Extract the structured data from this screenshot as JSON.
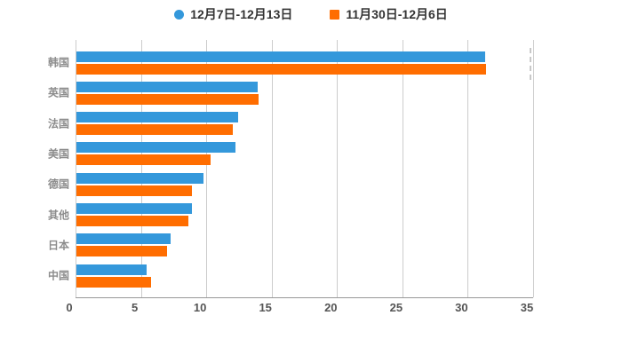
{
  "legend": {
    "items": [
      {
        "label": "12月7日-12月13日",
        "color": "#3498db",
        "marker": "circle"
      },
      {
        "label": "11月30日-12月6日",
        "color": "#ff6d00",
        "marker": "square"
      }
    ]
  },
  "chart_data": {
    "type": "bar",
    "orientation": "horizontal",
    "title": "",
    "xlabel": "",
    "ylabel": "",
    "categories": [
      "韩国",
      "英国",
      "法国",
      "美国",
      "德国",
      "其他",
      "日本",
      "中国"
    ],
    "series": [
      {
        "name": "12月7日-12月13日",
        "color": "#3498db",
        "values": [
          31.3,
          13.9,
          12.4,
          12.2,
          9.8,
          8.9,
          7.3,
          5.4
        ]
      },
      {
        "name": "11月30日-12月6日",
        "color": "#ff6d00",
        "values": [
          31.4,
          14.0,
          12.0,
          10.3,
          8.9,
          8.6,
          7.0,
          5.8
        ]
      }
    ],
    "xlim": [
      0,
      35
    ],
    "x_ticks": [
      0,
      5,
      10,
      15,
      20,
      25,
      30,
      35
    ],
    "grid": true,
    "legend_position": "top",
    "colors": {
      "gridline": "#cccccc",
      "axis_line": "#999999",
      "tick_label": "#555555",
      "category_label": "#8c8c8c",
      "legend_text": "#333333",
      "background": "#ffffff"
    }
  }
}
